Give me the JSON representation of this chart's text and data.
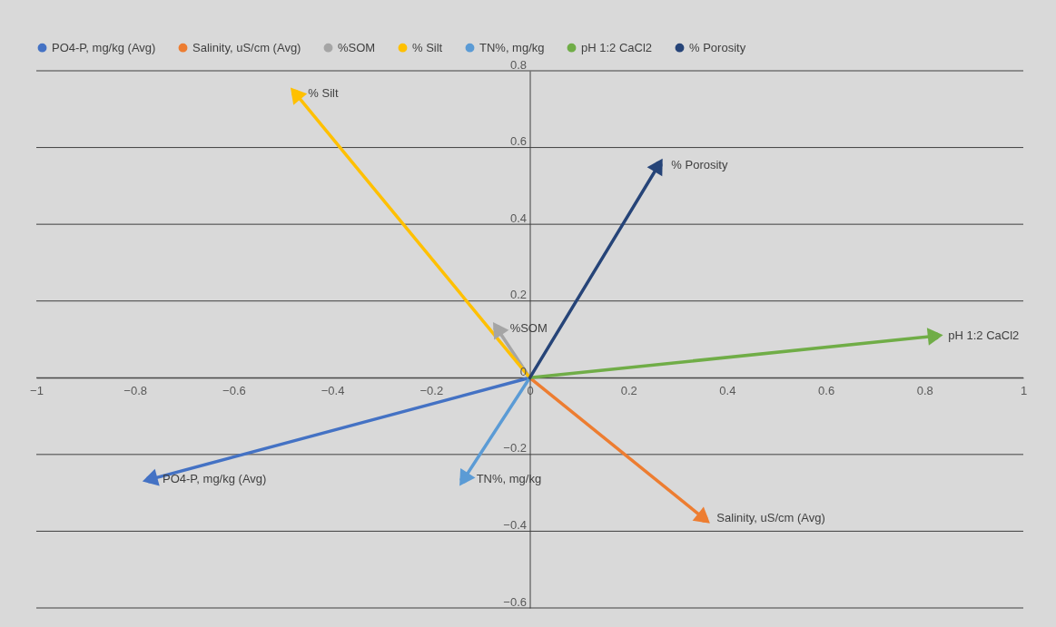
{
  "chart_data": {
    "type": "line",
    "legend": "top",
    "grid": "y",
    "marker": "circle",
    "xlim": [
      -1,
      1
    ],
    "xticks": [
      -1,
      -0.8,
      -0.6,
      -0.4,
      -0.2,
      0,
      0.2,
      0.4,
      0.6,
      0.8,
      1
    ],
    "ylim": [
      -0.6,
      0.8
    ],
    "yticks": [
      -0.6,
      -0.4,
      -0.2,
      0,
      0.2,
      0.4,
      0.6,
      0.8
    ],
    "series": [
      {
        "name": "PO4-P, mg/kg (Avg)",
        "color": "#4472c4",
        "x": [
          0,
          -0.77
        ],
        "values": [
          0,
          -0.265
        ]
      },
      {
        "name": "Salinity, uS/cm (Avg)",
        "color": "#ed7d31",
        "x": [
          0,
          0.353
        ],
        "values": [
          0,
          -0.367
        ]
      },
      {
        "name": "%SOM",
        "color": "#a5a5a5",
        "x": [
          0,
          -0.066
        ],
        "values": [
          0,
          0.128
        ]
      },
      {
        "name": "% Silt",
        "color": "#ffc000",
        "x": [
          0,
          -0.475
        ],
        "values": [
          0,
          0.741
        ]
      },
      {
        "name": "TN%, mg/kg",
        "color": "#5b9bd5",
        "x": [
          0,
          -0.134
        ],
        "values": [
          0,
          -0.265
        ]
      },
      {
        "name": "pH 1:2 CaCl2",
        "color": "#70ad47",
        "x": [
          0,
          0.822
        ],
        "values": [
          0,
          0.109
        ]
      },
      {
        "name": "% Porosity",
        "color": "#264478",
        "x": [
          0,
          0.261
        ],
        "values": [
          0,
          0.554
        ]
      }
    ]
  }
}
